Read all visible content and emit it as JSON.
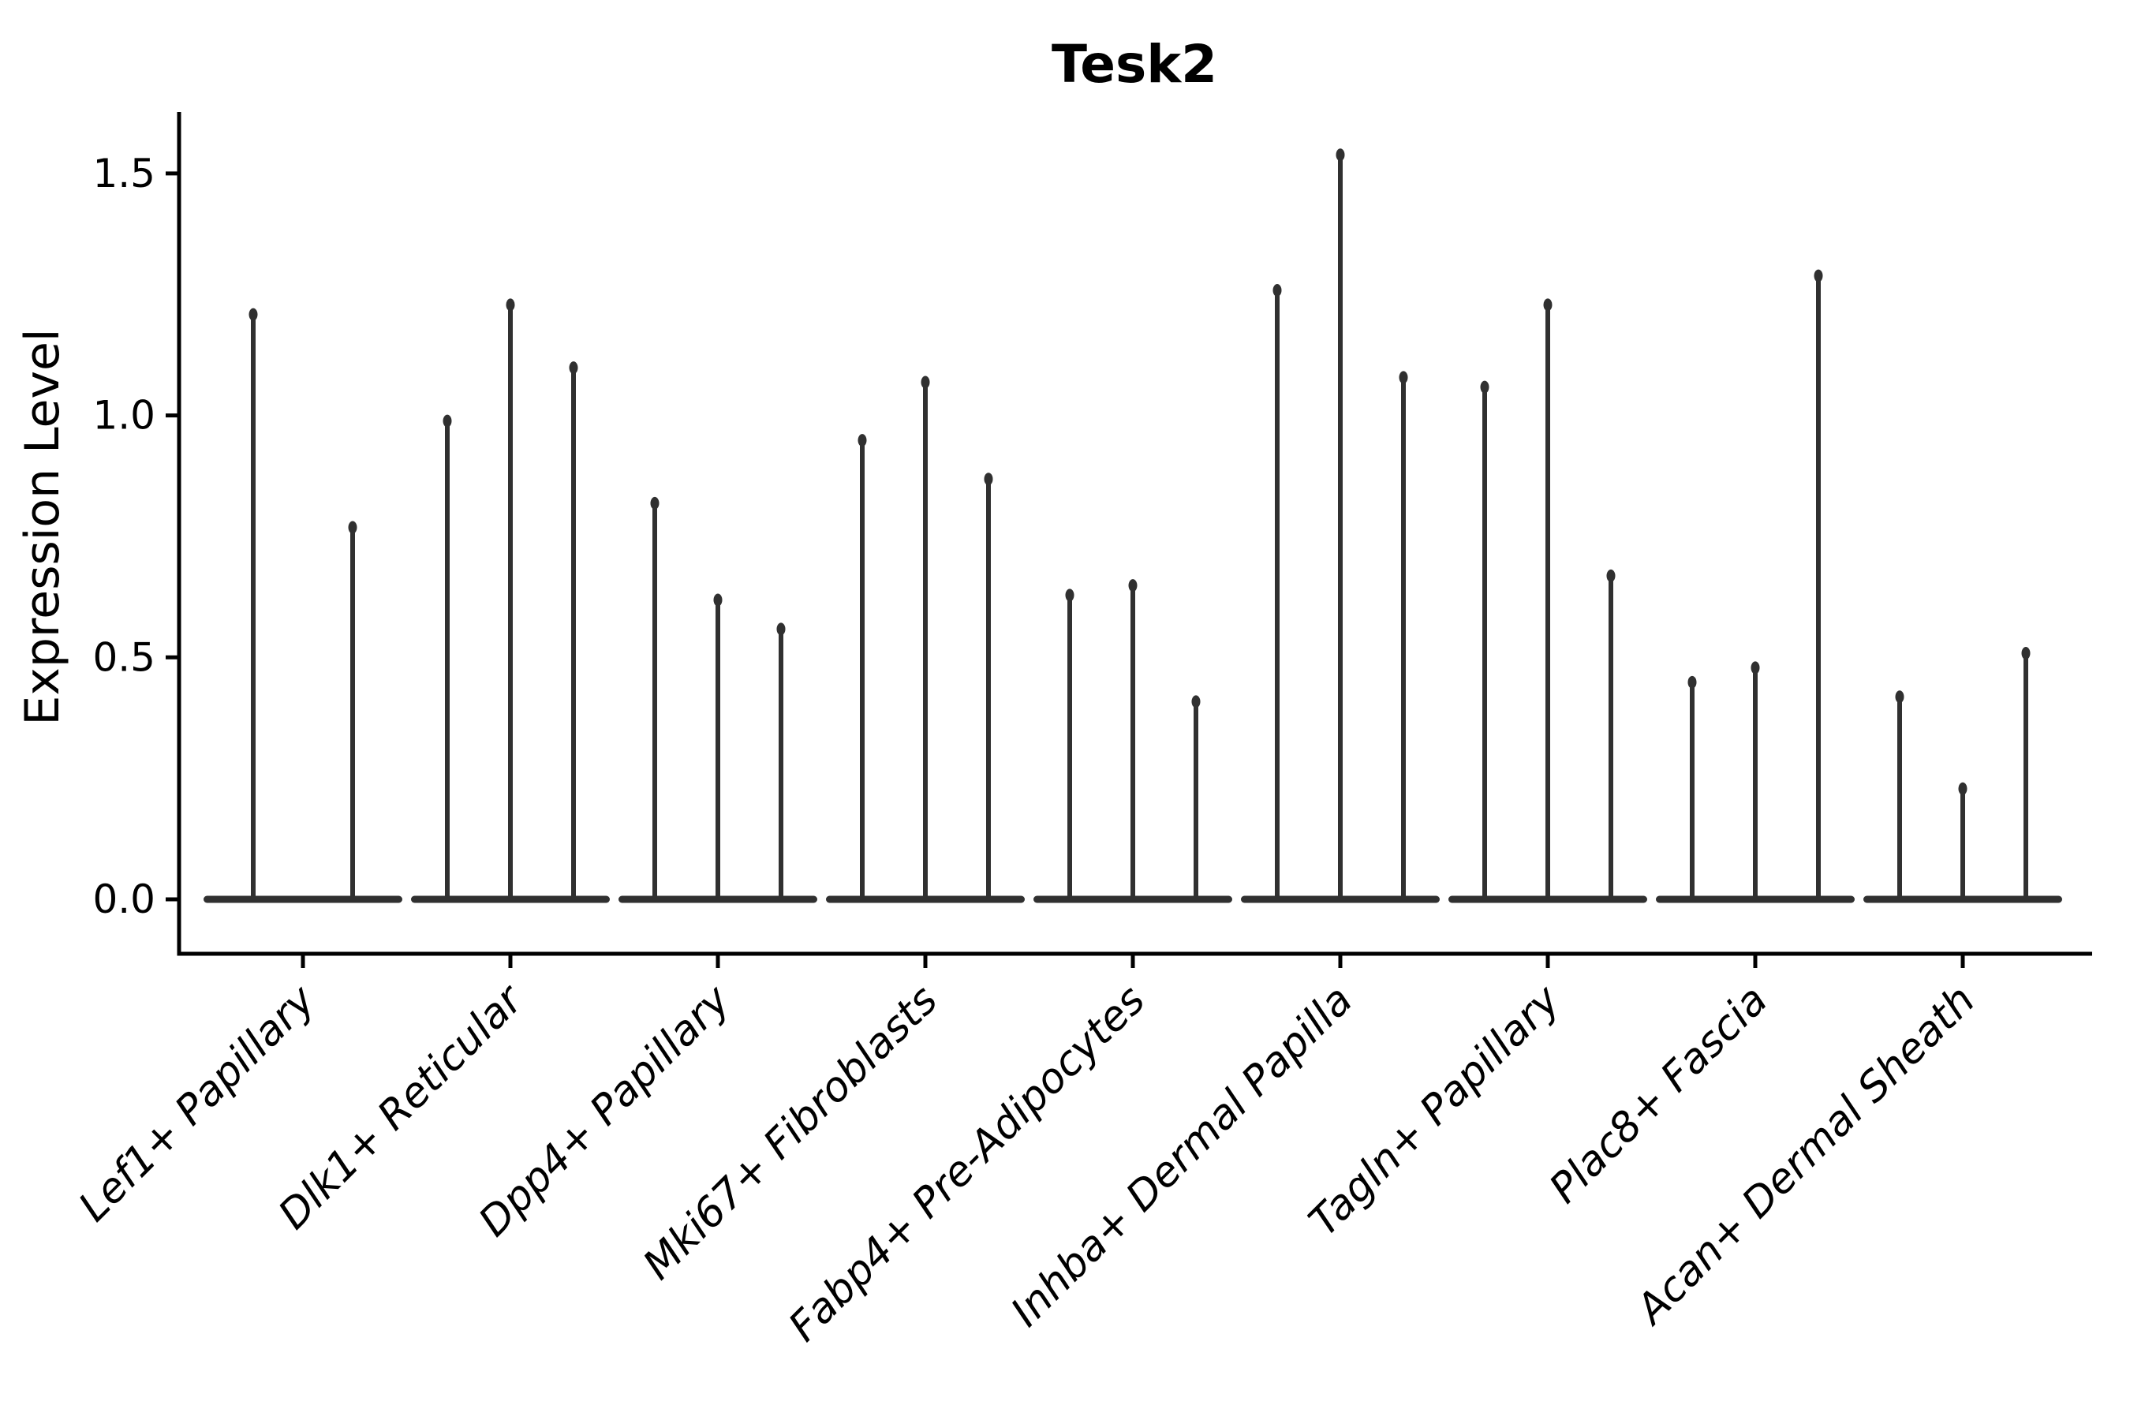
{
  "title": "Tesk2",
  "chart_data": {
    "type": "violin",
    "title": "Tesk2",
    "xlabel": "",
    "ylabel": "Expression Level",
    "ylim": [
      -0.1125,
      1.6275
    ],
    "yticks": [
      {
        "label": "0.0",
        "value": 0.0
      },
      {
        "label": "0.5",
        "value": 0.5
      },
      {
        "label": "1.0",
        "value": 1.0
      },
      {
        "label": "1.5",
        "value": 1.5
      }
    ],
    "categories": [
      "Lef1+ Papillary",
      "Dlk1+ Reticular",
      "Dpp4+ Papillary",
      "Mki67+ Fibroblasts",
      "Fabp4+ Pre-Adipocytes",
      "Inhba+ Dermal Papilla",
      "Tagln+ Papillary",
      "Plac8+ Fascia",
      "Acan+ Dermal Sheath"
    ],
    "groups": [
      {
        "category": "Lef1+ Papillary",
        "violin_maxes": [
          1.22,
          0.78
        ]
      },
      {
        "category": "Dlk1+ Reticular",
        "violin_maxes": [
          1.0,
          1.24,
          1.11
        ]
      },
      {
        "category": "Dpp4+ Papillary",
        "violin_maxes": [
          0.83,
          0.63,
          0.57
        ]
      },
      {
        "category": "Mki67+ Fibroblasts",
        "violin_maxes": [
          0.96,
          1.08,
          0.88
        ]
      },
      {
        "category": "Fabp4+ Pre-Adipocytes",
        "violin_maxes": [
          0.64,
          0.66,
          0.42
        ]
      },
      {
        "category": "Inhba+ Dermal Papilla",
        "violin_maxes": [
          1.27,
          1.55,
          1.09
        ]
      },
      {
        "category": "Tagln+ Papillary",
        "violin_maxes": [
          1.07,
          1.24,
          0.68
        ]
      },
      {
        "category": "Plac8+ Fascia",
        "violin_maxes": [
          0.46,
          0.49,
          1.3
        ]
      },
      {
        "category": "Acan+ Dermal Sheath",
        "violin_maxes": [
          0.43,
          0.24,
          0.52
        ]
      }
    ],
    "violin_shape_note": "each violin: wide flat base at 0 with a thin spike rising to its max value",
    "legend": null,
    "grid": false,
    "styles": {
      "violin_color": "#303030",
      "axis_color": "#000000",
      "background": "#ffffff",
      "xtick_label_rotation_deg": 45,
      "xtick_label_style": "italic"
    }
  }
}
